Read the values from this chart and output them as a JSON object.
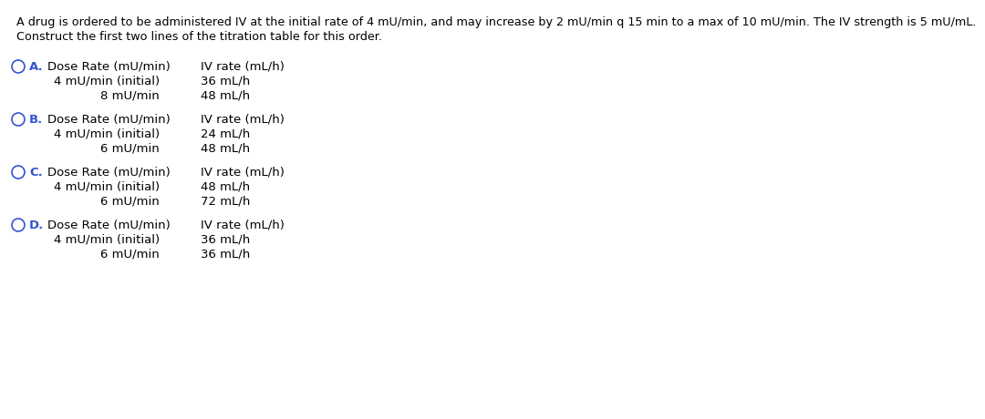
{
  "background_color": "#ffffff",
  "question_text_line1": "A drug is ordered to be administered IV at the initial rate of 4 mU/min, and may increase by 2 mU/min q 15 min to a max of 10 mU/min. The IV strength is 5 mU/mL.",
  "question_text_line2": "Construct the first two lines of the titration table for this order.",
  "options": [
    {
      "label": "A.",
      "col1_header": "Dose Rate (mU/min)",
      "col2_header": "IV rate (mL/h)",
      "row1_col1": "4 mU/min (initial)",
      "row1_col2": "36 mL/h",
      "row2_col1": "8 mU/min",
      "row2_col2": "48 mL/h"
    },
    {
      "label": "B.",
      "col1_header": "Dose Rate (mU/min)",
      "col2_header": "IV rate (mL/h)",
      "row1_col1": "4 mU/min (initial)",
      "row1_col2": "24 mL/h",
      "row2_col1": "6 mU/min",
      "row2_col2": "48 mL/h"
    },
    {
      "label": "C.",
      "col1_header": "Dose Rate (mU/min)",
      "col2_header": "IV rate (mL/h)",
      "row1_col1": "4 mU/min (initial)",
      "row1_col2": "48 mL/h",
      "row2_col1": "6 mU/min",
      "row2_col2": "72 mL/h"
    },
    {
      "label": "D.",
      "col1_header": "Dose Rate (mU/min)",
      "col2_header": "IV rate (mL/h)",
      "row1_col1": "4 mU/min (initial)",
      "row1_col2": "36 mL/h",
      "row2_col1": "6 mU/min",
      "row2_col2": "36 mL/h"
    }
  ],
  "text_color": "#000000",
  "option_label_color": "#3355cc",
  "circle_color": "#3355cc",
  "font_size_question": 9.2,
  "font_size_option": 9.5
}
